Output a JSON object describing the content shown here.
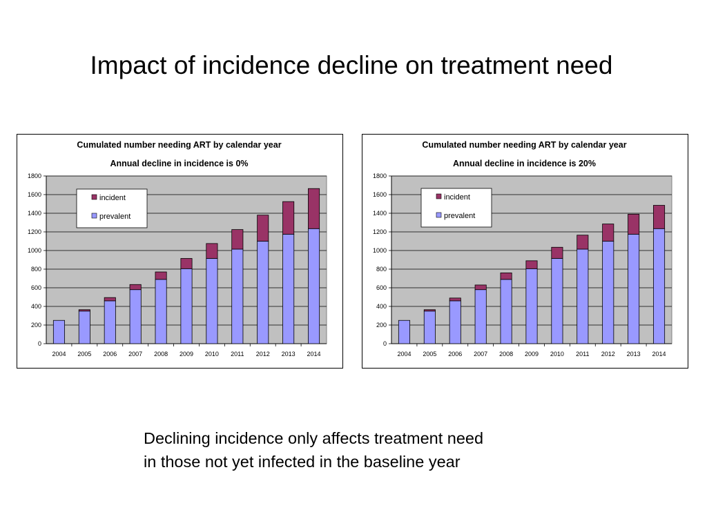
{
  "slide": {
    "title": "Impact of incidence decline on treatment need",
    "caption_lines": [
      "Declining incidence only affects treatment need",
      "in those not yet infected in the baseline year"
    ]
  },
  "colors": {
    "incident": "#993366",
    "prevalent": "#9999ff",
    "plot_background": "#c0c0c0"
  },
  "chart_data": [
    {
      "type": "bar",
      "stacked": true,
      "title": "Cumulated number needing ART by calendar year",
      "subtitle": "Annual decline in incidence is 0%",
      "xlabel": "",
      "ylabel": "",
      "ylim": [
        0,
        1800
      ],
      "yticks": [
        "0",
        "200",
        "400",
        "600",
        "800",
        "1000",
        "1200",
        "1400",
        "1600",
        "1800"
      ],
      "grid": true,
      "legend_position": "top-left inside",
      "categories": [
        "2004",
        "2005",
        "2006",
        "2007",
        "2008",
        "2009",
        "2010",
        "2011",
        "2012",
        "2013",
        "2014"
      ],
      "series": [
        {
          "name": "prevalent",
          "values": [
            250,
            350,
            460,
            580,
            690,
            805,
            915,
            1015,
            1100,
            1175,
            1235
          ]
        },
        {
          "name": "incident",
          "values": [
            0,
            15,
            35,
            55,
            80,
            110,
            160,
            210,
            280,
            350,
            430
          ]
        }
      ]
    },
    {
      "type": "bar",
      "stacked": true,
      "title": "Cumulated number needing ART by calendar year",
      "subtitle": "Annual decline in incidence is 20%",
      "xlabel": "",
      "ylabel": "",
      "ylim": [
        0,
        1800
      ],
      "yticks": [
        "0",
        "200",
        "400",
        "600",
        "800",
        "1000",
        "1200",
        "1400",
        "1600",
        "1800"
      ],
      "grid": true,
      "legend_position": "top-left inside",
      "categories": [
        "2004",
        "2005",
        "2006",
        "2007",
        "2008",
        "2009",
        "2010",
        "2011",
        "2012",
        "2013",
        "2014"
      ],
      "series": [
        {
          "name": "prevalent",
          "values": [
            250,
            350,
            460,
            580,
            690,
            805,
            915,
            1015,
            1100,
            1175,
            1235
          ]
        },
        {
          "name": "incident",
          "values": [
            0,
            15,
            30,
            50,
            70,
            85,
            120,
            150,
            185,
            215,
            250
          ]
        }
      ]
    }
  ]
}
